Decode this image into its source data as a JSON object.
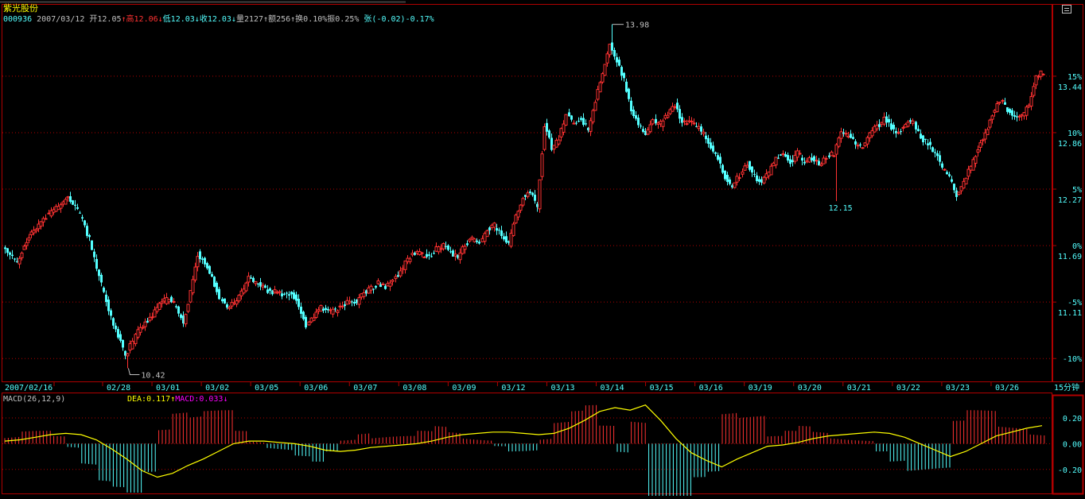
{
  "window": {
    "stock_name": "紫光股份",
    "info_bar": {
      "code": "000936",
      "date": "2007/03/12",
      "open_label": "开",
      "open": "12.05",
      "high_label": "高",
      "high": "12.06",
      "low_label": "低",
      "low": "12.03",
      "close_label": "收",
      "close": "12.03",
      "volume_label": "量",
      "volume": "2127",
      "amount_label": "额",
      "amount": "256",
      "turnover_label": "换",
      "turnover": "0.10%",
      "amplitude_label": "振",
      "amplitude": "0.25%",
      "change_label": "张",
      "change": "(-0.02)-0.17%"
    },
    "period_label": "15分钟",
    "macd_header": {
      "params": "MACD(26,12,9)",
      "dea_label": "DEA:",
      "dea": "0.117",
      "macd_label": "MACD:",
      "macd": "0.033"
    },
    "colors": {
      "up": "#ff3232",
      "down": "#54ffff",
      "grid": "#b00000",
      "axis_text": "#54ffff",
      "label_gray": "#c0c0c0",
      "dea_line": "#ffff00",
      "macd_text": "#ff00ff"
    }
  },
  "chart_data": [
    {
      "type": "candlestick",
      "base_price": 11.69,
      "ylim": [
        10.35,
        14.15
      ],
      "y_ticks": [
        {
          "pct": "15%",
          "price": "13.44"
        },
        {
          "pct": "10%",
          "price": "12.86"
        },
        {
          "pct": "5%",
          "price": "12.27"
        },
        {
          "pct": "0%",
          "price": "11.69"
        },
        {
          "pct": "-5%",
          "price": "11.11"
        },
        {
          "pct": "-10%",
          "price": ""
        }
      ],
      "x_labels": [
        "2007/02/16",
        "02/28",
        "03/01",
        "03/02",
        "03/05",
        "03/06",
        "03/07",
        "03/08",
        "03/09",
        "03/12",
        "03/13",
        "03/14",
        "03/15",
        "03/16",
        "03/19",
        "03/20",
        "03/21",
        "03/22",
        "03/23",
        "03/26"
      ],
      "annotations": [
        {
          "text": "13.98",
          "value": 13.98
        },
        {
          "text": "10.42",
          "value": 10.42
        },
        {
          "text": "12.15",
          "value": 12.15
        }
      ],
      "closes": [
        11.7,
        11.6,
        11.52,
        11.68,
        11.82,
        11.9,
        12.0,
        12.05,
        12.12,
        12.2,
        12.1,
        11.95,
        11.75,
        11.45,
        11.2,
        10.95,
        10.75,
        10.55,
        10.7,
        10.85,
        10.9,
        11.02,
        11.1,
        11.15,
        11.05,
        10.9,
        11.2,
        11.6,
        11.5,
        11.35,
        11.15,
        11.05,
        11.1,
        11.2,
        11.35,
        11.3,
        11.25,
        11.2,
        11.22,
        11.18,
        11.2,
        11.08,
        10.85,
        10.95,
        11.05,
        11.0,
        11.02,
        11.08,
        11.12,
        11.1,
        11.2,
        11.25,
        11.3,
        11.27,
        11.35,
        11.42,
        11.55,
        11.62,
        11.6,
        11.58,
        11.65,
        11.7,
        11.62,
        11.55,
        11.7,
        11.75,
        11.7,
        11.85,
        11.9,
        11.8,
        11.7,
        12.0,
        12.2,
        12.25,
        12.1,
        12.95,
        12.7,
        12.8,
        13.05,
        12.95,
        13.0,
        12.9,
        13.2,
        13.45,
        13.8,
        13.6,
        13.4,
        13.1,
        12.95,
        12.85,
        12.98,
        12.95,
        13.05,
        13.15,
        12.95,
        12.98,
        12.92,
        12.85,
        12.72,
        12.6,
        12.4,
        12.3,
        12.42,
        12.55,
        12.4,
        12.35,
        12.45,
        12.6,
        12.65,
        12.55,
        12.65,
        12.55,
        12.6,
        12.52,
        12.6,
        12.65,
        12.85,
        12.82,
        12.75,
        12.7,
        12.85,
        12.92,
        13.0,
        12.92,
        12.85,
        12.95,
        12.98,
        12.8,
        12.75,
        12.65,
        12.5,
        12.38,
        12.22,
        12.35,
        12.5,
        12.7,
        12.85,
        13.05,
        13.2,
        13.1,
        13.0,
        13.02,
        13.15,
        13.45,
        13.48
      ],
      "macd": {
        "ylim": [
          -0.38,
          0.36
        ],
        "ticks": [
          "0.20",
          "0.00",
          "-0.20"
        ],
        "dea": [
          0.02,
          0.03,
          0.05,
          0.07,
          0.08,
          0.07,
          0.03,
          -0.04,
          -0.12,
          -0.21,
          -0.26,
          -0.23,
          -0.17,
          -0.12,
          -0.06,
          0.0,
          0.02,
          0.02,
          0.01,
          0.0,
          -0.02,
          -0.05,
          -0.06,
          -0.05,
          -0.03,
          -0.02,
          -0.01,
          0.0,
          0.02,
          0.05,
          0.07,
          0.08,
          0.09,
          0.09,
          0.08,
          0.07,
          0.08,
          0.12,
          0.18,
          0.25,
          0.28,
          0.26,
          0.3,
          0.18,
          0.04,
          -0.07,
          -0.13,
          -0.18,
          -0.12,
          -0.07,
          -0.02,
          -0.01,
          0.01,
          0.04,
          0.06,
          0.07,
          0.08,
          0.09,
          0.08,
          0.05,
          0.0,
          -0.05,
          -0.1,
          -0.06,
          0.0,
          0.06,
          0.09,
          0.12,
          0.14
        ]
      }
    }
  ]
}
